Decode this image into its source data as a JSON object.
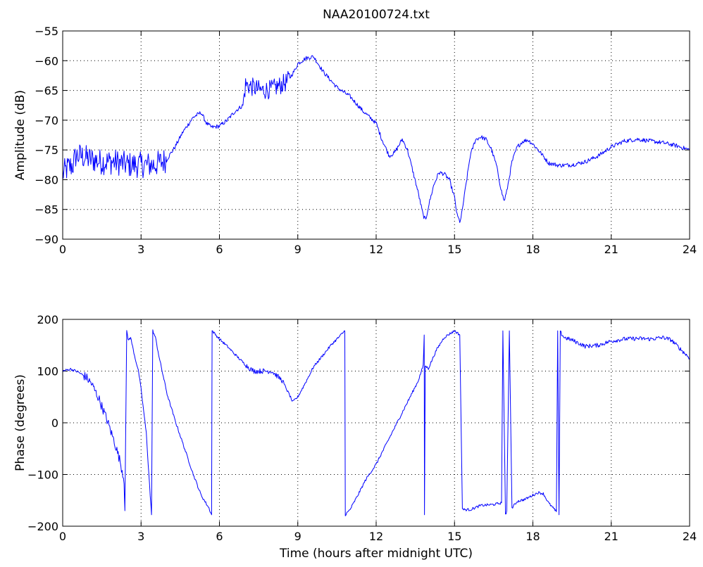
{
  "figure": {
    "title": "NAA20100724.txt"
  },
  "chart_data": [
    {
      "type": "line",
      "name": "amplitude",
      "title": "NAA20100724.txt",
      "xlabel": "",
      "ylabel": "Amplitude (dB)",
      "xlim": [
        0,
        24
      ],
      "ylim": [
        -90,
        -55
      ],
      "xticks": [
        0,
        3,
        6,
        9,
        12,
        15,
        18,
        21,
        24
      ],
      "yticks": [
        -90,
        -85,
        -80,
        -75,
        -70,
        -65,
        -60,
        -55
      ],
      "xtick_labels": [
        "0",
        "3",
        "6",
        "9",
        "12",
        "15",
        "18",
        "21",
        "24"
      ],
      "ytick_labels": [
        "−90",
        "−85",
        "−80",
        "−75",
        "−70",
        "−65",
        "−60",
        "−55"
      ],
      "grid": true,
      "color": "#0000ff",
      "series": [
        {
          "x": [
            0,
            0.2,
            0.4,
            0.5,
            0.7,
            1.0,
            1.5,
            2.0,
            2.5,
            3.0,
            3.5,
            3.8,
            4.0,
            4.3,
            4.6,
            5.0,
            5.3,
            5.5,
            5.7,
            6.0,
            6.3,
            6.6,
            6.9,
            7.0,
            7.3,
            7.6,
            8.0,
            8.3,
            8.6,
            8.9,
            9.0,
            9.3,
            9.6,
            10.0,
            10.5,
            11.0,
            11.5,
            12.0,
            12.2,
            12.5,
            12.7,
            12.9,
            13.0,
            13.2,
            13.4,
            13.6,
            13.8,
            13.9,
            14.0,
            14.2,
            14.4,
            14.6,
            14.8,
            15.0,
            15.1,
            15.2,
            15.25,
            15.4,
            15.6,
            15.8,
            16.0,
            16.2,
            16.4,
            16.6,
            16.8,
            16.9,
            17.0,
            17.2,
            17.4,
            17.6,
            17.8,
            18.0,
            18.3,
            18.6,
            19.0,
            19.5,
            20.0,
            20.5,
            21.0,
            21.5,
            22.0,
            22.5,
            23.0,
            23.5,
            24.0
          ],
          "y": [
            -79,
            -78,
            -77.5,
            -76,
            -76,
            -76.5,
            -77,
            -77,
            -77.5,
            -77.5,
            -77.5,
            -77,
            -76.5,
            -74.5,
            -72,
            -69.5,
            -68.7,
            -70.5,
            -71.2,
            -71,
            -70,
            -68.5,
            -67.5,
            -64,
            -64.5,
            -65,
            -64.8,
            -64.2,
            -63.5,
            -61.5,
            -60.5,
            -59.6,
            -59.3,
            -62,
            -64.5,
            -66,
            -68.5,
            -70.5,
            -73,
            -76,
            -75.5,
            -74,
            -73.2,
            -75,
            -78.5,
            -82,
            -86,
            -86.8,
            -84.5,
            -81,
            -78.8,
            -79,
            -80,
            -83,
            -86,
            -87,
            -86.5,
            -82,
            -76,
            -73.3,
            -72.8,
            -73.2,
            -74.8,
            -77.5,
            -82,
            -83.6,
            -82,
            -77,
            -74.5,
            -73.6,
            -73.3,
            -74,
            -75.5,
            -77.2,
            -77.6,
            -77.5,
            -77,
            -76,
            -74.5,
            -73.5,
            -73.2,
            -73.5,
            -73.8,
            -74.3,
            -75
          ]
        }
      ]
    },
    {
      "type": "line",
      "name": "phase",
      "title": "",
      "xlabel": "Time (hours after midnight UTC)",
      "ylabel": "Phase (degrees)",
      "xlim": [
        0,
        24
      ],
      "ylim": [
        -200,
        200
      ],
      "xticks": [
        0,
        3,
        6,
        9,
        12,
        15,
        18,
        21,
        24
      ],
      "yticks": [
        -200,
        -100,
        0,
        100,
        200
      ],
      "xtick_labels": [
        "0",
        "3",
        "6",
        "9",
        "12",
        "15",
        "18",
        "21",
        "24"
      ],
      "ytick_labels": [
        "−200",
        "−100",
        "0",
        "100",
        "200"
      ],
      "grid": true,
      "color": "#0000ff",
      "series": [
        {
          "x": [
            0,
            0.3,
            0.6,
            0.9,
            1.1,
            1.4,
            1.7,
            2.0,
            2.2,
            2.35,
            2.38,
            2.45,
            2.5,
            2.6,
            2.75,
            2.9,
            3.0,
            3.2,
            3.35,
            3.4,
            3.45,
            3.55,
            3.7,
            4.0,
            4.3,
            4.6,
            5.0,
            5.3,
            5.6,
            5.7,
            5.72,
            6.0,
            6.3,
            6.6,
            7.0,
            7.3,
            7.6,
            8.0,
            8.4,
            8.7,
            8.8,
            9.0,
            9.3,
            9.6,
            10.0,
            10.3,
            10.6,
            10.8,
            10.82,
            11.0,
            11.3,
            11.6,
            12.0,
            12.4,
            12.8,
            13.2,
            13.6,
            13.8,
            13.84,
            13.85,
            13.88,
            14.0,
            14.3,
            14.6,
            15.0,
            15.2,
            15.3,
            15.35,
            15.6,
            16.0,
            16.5,
            16.8,
            16.85,
            16.95,
            17.0,
            17.1,
            17.2,
            17.4,
            17.7,
            18.0,
            18.2,
            18.4,
            18.6,
            18.9,
            18.95,
            19.0,
            19.05,
            19.2,
            19.5,
            20.0,
            20.5,
            21.0,
            21.5,
            22.0,
            22.5,
            23.0,
            23.3,
            23.6,
            24.0
          ],
          "y": [
            100,
            104,
            98,
            88,
            76,
            45,
            5,
            -40,
            -75,
            -110,
            -170,
            178,
            160,
            165,
            130,
            100,
            65,
            -20,
            -140,
            -178,
            178,
            165,
            125,
            55,
            5,
            -40,
            -100,
            -140,
            -165,
            -178,
            178,
            162,
            148,
            132,
            112,
            100,
            100,
            100,
            82,
            52,
            40,
            50,
            78,
            108,
            133,
            152,
            167,
            178,
            -178,
            -168,
            -140,
            -110,
            -80,
            -40,
            0,
            40,
            80,
            110,
            170,
            -178,
            110,
            105,
            140,
            165,
            178,
            170,
            -165,
            -168,
            -168,
            -160,
            -158,
            -155,
            178,
            -178,
            -170,
            178,
            -165,
            -152,
            -148,
            -140,
            -135,
            -137,
            -155,
            -172,
            178,
            -178,
            175,
            165,
            160,
            148,
            150,
            158,
            162,
            163,
            162,
            165,
            160,
            145,
            125
          ]
        }
      ]
    }
  ]
}
